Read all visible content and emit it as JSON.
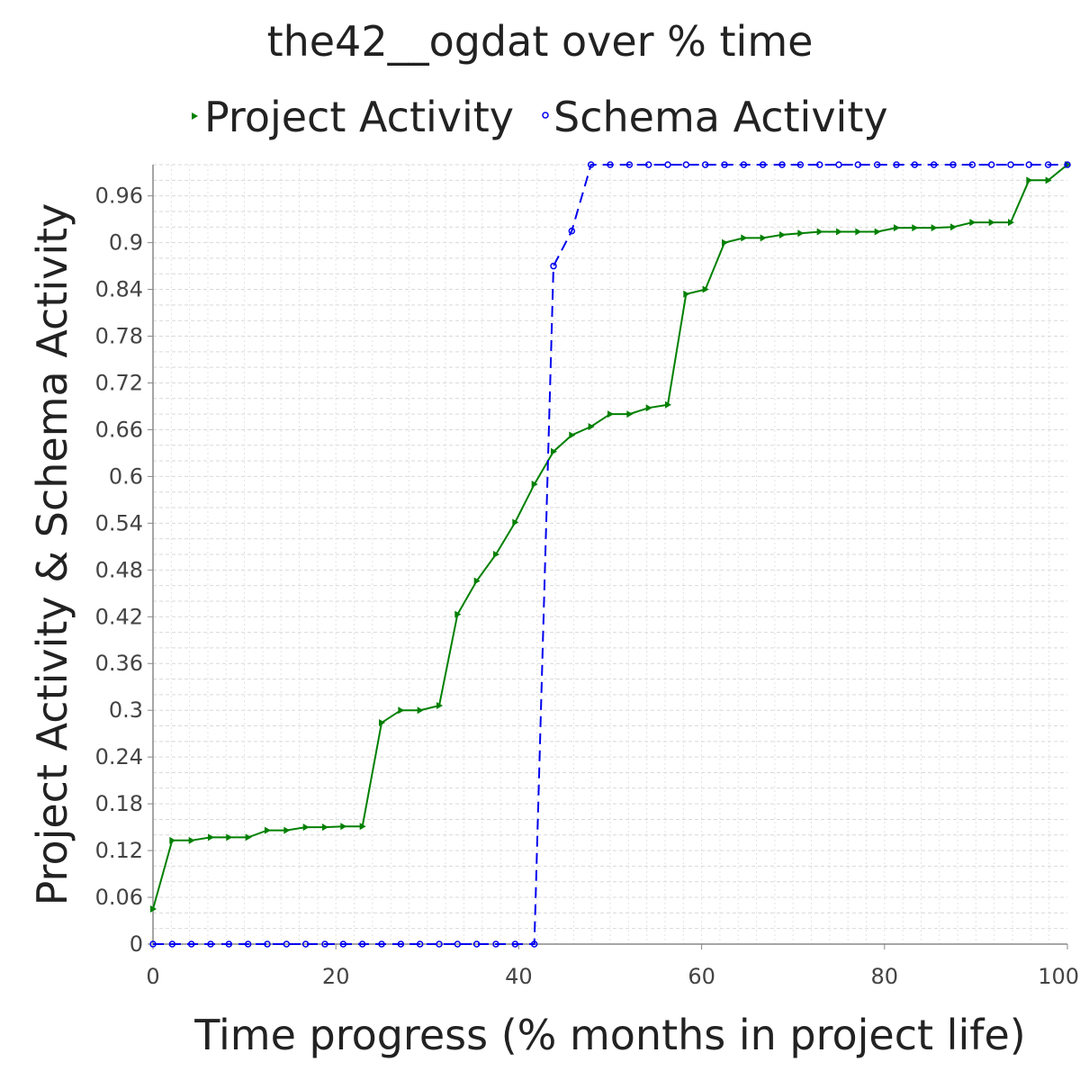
{
  "chart_data": {
    "type": "line",
    "title": "the42__ogdat over % time",
    "xlabel": "Time progress (% months in project life)",
    "ylabel": "Project Activity & Schema Activity",
    "xlim": [
      0,
      100
    ],
    "ylim": [
      0,
      1
    ],
    "x_ticks": [
      "0",
      "20",
      "40",
      "60",
      "80",
      "100"
    ],
    "y_ticks": [
      "0",
      "0.06",
      "0.12",
      "0.18",
      "0.24",
      "0.3",
      "0.36",
      "0.42",
      "0.48",
      "0.54",
      "0.6",
      "0.66",
      "0.72",
      "0.78",
      "0.84",
      "0.9",
      "0.96"
    ],
    "grid": true,
    "legend_position": "top",
    "series": [
      {
        "name": "Project Activity",
        "color": "#008000",
        "marker": "triangle-right",
        "line_style": "solid",
        "points": [
          [
            0,
            0.045
          ],
          [
            2.1,
            0.133
          ],
          [
            4.2,
            0.133
          ],
          [
            6.3,
            0.137
          ],
          [
            8.3,
            0.137
          ],
          [
            10.4,
            0.137
          ],
          [
            12.5,
            0.146
          ],
          [
            14.6,
            0.146
          ],
          [
            16.7,
            0.15
          ],
          [
            18.8,
            0.15
          ],
          [
            20.8,
            0.151
          ],
          [
            22.9,
            0.151
          ],
          [
            25,
            0.284
          ],
          [
            27.1,
            0.3
          ],
          [
            29.2,
            0.3
          ],
          [
            31.3,
            0.306
          ],
          [
            33.3,
            0.423
          ],
          [
            35.4,
            0.466
          ],
          [
            37.5,
            0.5
          ],
          [
            39.6,
            0.541
          ],
          [
            41.7,
            0.59
          ],
          [
            43.8,
            0.632
          ],
          [
            45.8,
            0.653
          ],
          [
            47.9,
            0.664
          ],
          [
            50,
            0.68
          ],
          [
            52.1,
            0.68
          ],
          [
            54.2,
            0.688
          ],
          [
            56.3,
            0.692
          ],
          [
            58.3,
            0.834
          ],
          [
            60.4,
            0.84
          ],
          [
            62.5,
            0.9
          ],
          [
            64.6,
            0.906
          ],
          [
            66.7,
            0.906
          ],
          [
            68.8,
            0.91
          ],
          [
            70.8,
            0.912
          ],
          [
            72.9,
            0.914
          ],
          [
            75,
            0.914
          ],
          [
            77.1,
            0.914
          ],
          [
            79.2,
            0.914
          ],
          [
            81.3,
            0.919
          ],
          [
            83.3,
            0.919
          ],
          [
            85.4,
            0.919
          ],
          [
            87.5,
            0.92
          ],
          [
            89.6,
            0.926
          ],
          [
            91.7,
            0.926
          ],
          [
            93.8,
            0.926
          ],
          [
            95.8,
            0.98
          ],
          [
            97.9,
            0.98
          ],
          [
            100,
            1.0
          ]
        ]
      },
      {
        "name": "Schema Activity",
        "color": "#0000ee",
        "marker": "circle",
        "line_style": "dashed",
        "points": [
          [
            0,
            0
          ],
          [
            2.1,
            0
          ],
          [
            4.2,
            0
          ],
          [
            6.3,
            0
          ],
          [
            8.3,
            0
          ],
          [
            10.4,
            0
          ],
          [
            12.5,
            0
          ],
          [
            14.6,
            0
          ],
          [
            16.7,
            0
          ],
          [
            18.8,
            0
          ],
          [
            20.8,
            0
          ],
          [
            22.9,
            0
          ],
          [
            25,
            0
          ],
          [
            27.1,
            0
          ],
          [
            29.2,
            0
          ],
          [
            31.3,
            0
          ],
          [
            33.3,
            0
          ],
          [
            35.4,
            0
          ],
          [
            37.5,
            0
          ],
          [
            39.6,
            0
          ],
          [
            41.7,
            0
          ],
          [
            43.8,
            0.87
          ],
          [
            45.8,
            0.915
          ],
          [
            47.9,
            1.0
          ],
          [
            50,
            1.0
          ],
          [
            52.1,
            1.0
          ],
          [
            54.2,
            1.0
          ],
          [
            56.3,
            1.0
          ],
          [
            58.3,
            1.0
          ],
          [
            60.4,
            1.0
          ],
          [
            62.5,
            1.0
          ],
          [
            64.6,
            1.0
          ],
          [
            66.7,
            1.0
          ],
          [
            68.8,
            1.0
          ],
          [
            70.8,
            1.0
          ],
          [
            72.9,
            1.0
          ],
          [
            75,
            1.0
          ],
          [
            77.1,
            1.0
          ],
          [
            79.2,
            1.0
          ],
          [
            81.3,
            1.0
          ],
          [
            83.3,
            1.0
          ],
          [
            85.4,
            1.0
          ],
          [
            87.5,
            1.0
          ],
          [
            89.6,
            1.0
          ],
          [
            91.7,
            1.0
          ],
          [
            93.8,
            1.0
          ],
          [
            95.8,
            1.0
          ],
          [
            97.9,
            1.0
          ],
          [
            100,
            1.0
          ]
        ]
      }
    ]
  }
}
